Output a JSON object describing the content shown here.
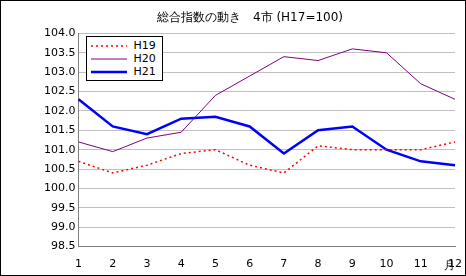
{
  "chart_data": {
    "type": "line",
    "title": "総合指数の動き　4市 (H17=100)",
    "x_label": "月",
    "categories": [
      "1",
      "2",
      "3",
      "4",
      "5",
      "6",
      "7",
      "8",
      "9",
      "10",
      "11",
      "12"
    ],
    "series": [
      {
        "name": "H19",
        "color": "#ff0000",
        "line_style": "dotted",
        "values": [
          100.7,
          100.4,
          100.6,
          100.9,
          101.0,
          100.6,
          100.4,
          101.1,
          101.0,
          101.0,
          101.0,
          101.2
        ]
      },
      {
        "name": "H20",
        "color": "#800080",
        "line_style": "solid",
        "values": [
          101.2,
          100.95,
          101.3,
          101.45,
          102.4,
          102.9,
          103.4,
          103.3,
          103.6,
          103.5,
          102.7,
          102.3
        ]
      },
      {
        "name": "H21",
        "color": "#0000ff",
        "line_style": "solid",
        "values": [
          102.3,
          101.6,
          101.4,
          101.8,
          101.85,
          101.6,
          100.9,
          101.5,
          101.6,
          101.0,
          100.7,
          100.6
        ]
      }
    ],
    "ylim": [
      98.5,
      104
    ],
    "yticks": [
      98.5,
      {
        "value": 99,
        "label": "99.0"
      },
      99.5,
      {
        "value": 100,
        "label": "100.0"
      },
      100.5,
      {
        "value": 101,
        "label": "101.0"
      },
      101.5,
      {
        "value": 102,
        "label": "102.0"
      },
      102.5,
      {
        "value": 103,
        "label": "103.0"
      },
      103.5,
      {
        "value": 104,
        "label": "104.0"
      }
    ],
    "grid": true,
    "legend": "top-left"
  }
}
